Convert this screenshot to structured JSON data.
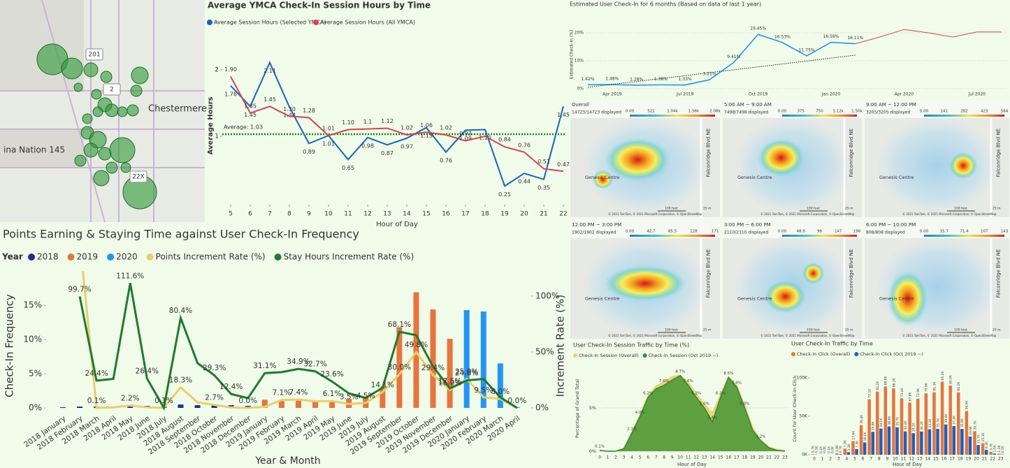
{
  "map": {
    "labels": [
      "201",
      "2",
      "Chestermere",
      "ina Nation 145",
      "22X"
    ]
  },
  "heatmaps": {
    "panels": [
      {
        "title": "Overall",
        "count": "14723/14723 displayed",
        "scale": [
          "0.00",
          "521",
          "1.04k",
          "1.56k",
          "2.08k"
        ]
      },
      {
        "title": "5:00 AM ~ 9:00 AM",
        "count": "7498/7498 displayed",
        "scale": [
          "0.00",
          "375",
          "750",
          "1.12k",
          "1.50k"
        ]
      },
      {
        "title": "9:00 AM ~ 12:00 PM",
        "count": "3205/3205 displayed",
        "scale": [
          "0.00",
          "141",
          "282",
          "423",
          "564"
        ]
      },
      {
        "title": "12:00 PM ~ 3:00 PM",
        "count": "1902/1902 displayed",
        "scale": [
          "0.00",
          "42.7",
          "85.5",
          "128",
          "171"
        ]
      },
      {
        "title": "3:00 PM ~ 6:00 PM",
        "count": "2110/2110 displayed",
        "scale": [
          "0.00",
          "48.9",
          "98",
          "147",
          "196"
        ]
      },
      {
        "title": "6:00 PM ~ 10:00 PM",
        "count": "808/808 displayed",
        "scale": [
          "0.00",
          "35.7",
          "71.4",
          "107",
          "143"
        ]
      }
    ],
    "place": "Genesis Centre",
    "street": "Falconridge Blvd NE",
    "scale_feet": "100 feet",
    "scale_m": "25 m",
    "attribution": "© 2021 TomTom, © 2021 Microsoft Corporation, © OpenStreetMap"
  },
  "chart_data": [
    {
      "type": "line",
      "title": "Average YMCA Check-In Session Hours by Time",
      "x": [
        5,
        6,
        7,
        8,
        9,
        10,
        11,
        12,
        13,
        14,
        15,
        16,
        17,
        18,
        19,
        20,
        21,
        22
      ],
      "xlim": [
        5,
        22
      ],
      "xticks": [
        5,
        6,
        7,
        8,
        9,
        10,
        11,
        12,
        13,
        14,
        15,
        16,
        17,
        18,
        19,
        20,
        21,
        22
      ],
      "ylim": [
        0,
        2.3
      ],
      "yticks": [
        1,
        2
      ],
      "x_label": "Hour of Day",
      "y_label": "Average Hours",
      "reference": {
        "value": 1.03,
        "label": "Average: 1.03",
        "color": "#138a13"
      },
      "series": [
        {
          "name": "Average Session Hours (Selected YMCA)",
          "color": "#1565c0",
          "values": [
            1.76,
            1.45,
            2.11,
            1.44,
            0.89,
            1.01,
            0.65,
            0.98,
            0.87,
            0.97,
            1.13,
            0.76,
            1.09,
            1.1,
            0.25,
            0.44,
            0.35,
            1.45
          ],
          "value_labels": [
            "1.76",
            "1.45",
            "2.11",
            "1.44",
            "0.89",
            "1.01",
            "0.65",
            "0.98",
            "0.87",
            "0.97",
            "1.13",
            "0.76",
            "1.09",
            "1.10",
            "0.25",
            "0.44",
            "0.35",
            "1.45"
          ]
        },
        {
          "name": "Average Session Hours (All YMCA)",
          "color": "#d9434f",
          "values": [
            1.9,
            1.35,
            1.45,
            1.3,
            1.28,
            1.01,
            1.1,
            1.11,
            1.12,
            1.02,
            1.06,
            1.02,
            0.93,
            1.0,
            0.84,
            0.76,
            0.51,
            0.47
          ],
          "value_labels": [
            "1.90",
            "1.35",
            "1.45",
            "1.30",
            "1.28",
            "1.01",
            "1.10",
            "1.1",
            "1.12",
            "1.02",
            "1.06",
            "1.02",
            "0.93",
            null,
            "0.84",
            "0.76",
            "0.51",
            "0.47"
          ]
        }
      ]
    },
    {
      "type": "line",
      "title": "Estimated User Check-In for 6 months (Based on data of last 1 year)",
      "categories": [
        null,
        "Apr 2019",
        null,
        null,
        "Jul 2019",
        null,
        null,
        "Oct 2019",
        null,
        null,
        "Jan 2020",
        null,
        null,
        "Apr 2020",
        null,
        null,
        "Jul 2020",
        null
      ],
      "ylim": [
        0,
        22
      ],
      "yticks": [
        {
          "value": 0,
          "label": "0%"
        },
        {
          "value": 10,
          "label": "10%"
        },
        {
          "value": 20,
          "label": "20%"
        }
      ],
      "y_label": "Estimated Check-in (%)",
      "series": [
        {
          "name": "Actual",
          "color": "#2196f3",
          "values": [
            1.42,
            1.48,
            1.28,
            1.38,
            1.33,
            3.21,
            9.41,
            19.45,
            16.53,
            11.75,
            16.59,
            16.11,
            null,
            null,
            null,
            null,
            null,
            null
          ],
          "value_labels": [
            "1.42%",
            "1.48%",
            "1.28%",
            "1.38%",
            "1.33%",
            "3.21%",
            "9.41%",
            "19.45%",
            "16.53%",
            "11.75%",
            "16.59%",
            "16.11%",
            null,
            null,
            null,
            null,
            null,
            null
          ]
        },
        {
          "name": "Forecast",
          "color": "#d9434f",
          "values": [
            null,
            null,
            null,
            null,
            null,
            null,
            null,
            null,
            null,
            null,
            null,
            16.11,
            18.5,
            21.2,
            20.0,
            18.5,
            20.3,
            20.3
          ]
        }
      ]
    },
    {
      "type": "combo",
      "title": "Points Earning & Staying Time against User Check-In Frequency",
      "legend_title": "Year",
      "categories": [
        "2018 January",
        "2018 February",
        "2018 March",
        "2018 April",
        "2018 May",
        "2018 June",
        "2018 July",
        "2018 August",
        "2018 September",
        "2018 October",
        "2018 November",
        "2018 December",
        "2019 January",
        "2019 February",
        "2019 March",
        "2019 April",
        "2019 May",
        "2019 June",
        "2019 July",
        "2019 August",
        "2019 September",
        "2019 October",
        "2019 November",
        "2019 December",
        "2020 January",
        "2020 February",
        "2020 March",
        "2020 April"
      ],
      "ylim": [
        0,
        19.3
      ],
      "yticks": [
        {
          "value": 0,
          "label": "0%"
        },
        {
          "value": 5,
          "label": "5%"
        },
        {
          "value": 10,
          "label": "10%"
        },
        {
          "value": 15,
          "label": "15%"
        }
      ],
      "y2lim": [
        0,
        118
      ],
      "y2ticks": [
        {
          "value": 0,
          "label": "0%"
        },
        {
          "value": 50,
          "label": "50%"
        },
        {
          "value": 100,
          "label": "100%"
        }
      ],
      "x_label": "Year & Month",
      "y_label": "Check-In Frequency",
      "y2_label": "Increment Rate (%)",
      "series": [
        {
          "name": "2018",
          "color": "#1a2f8f",
          "kind": "bar",
          "values": [
            0.1,
            0.2,
            0.2,
            0.2,
            0.4,
            0.3,
            0.2,
            0.5,
            0.4,
            0.4,
            0.4,
            0.3,
            null,
            null,
            null,
            null,
            null,
            null,
            null,
            null,
            null,
            null,
            null,
            null,
            null,
            null,
            null,
            null
          ]
        },
        {
          "name": "2019",
          "color": "#e8743b",
          "kind": "bar",
          "values": [
            null,
            null,
            null,
            null,
            null,
            null,
            null,
            null,
            null,
            null,
            null,
            null,
            1.2,
            1.0,
            1.1,
            1.1,
            1.0,
            1.3,
            1.6,
            3.0,
            11.8,
            16.9,
            14.4,
            10.1,
            null,
            null,
            null,
            null
          ]
        },
        {
          "name": "2020",
          "color": "#2196f3",
          "kind": "bar",
          "values": [
            null,
            null,
            null,
            null,
            null,
            null,
            null,
            null,
            null,
            null,
            null,
            null,
            null,
            null,
            null,
            null,
            null,
            null,
            null,
            null,
            null,
            null,
            null,
            null,
            14.3,
            14.1,
            6.5,
            0.1
          ]
        },
        {
          "name": "Points Increment Rate (%)",
          "color": "#e8cf6a",
          "kind": "line",
          "axis": "y2",
          "values": [
            null,
            150,
            0.1,
            0.5,
            2.2,
            0.5,
            0.1,
            18.3,
            5.0,
            2.7,
            0.5,
            0.0,
            1.0,
            7.1,
            7.4,
            6.0,
            6.1,
            3.5,
            4.5,
            14.1,
            30.0,
            49.8,
            29.4,
            16.0,
            25.9,
            9.5,
            8.0,
            0.0
          ],
          "value_labels": [
            null,
            null,
            "0.1%",
            null,
            "2.2%",
            null,
            "0.1%",
            "18.3%",
            null,
            "2.7%",
            null,
            "0.0%",
            null,
            "7.1%",
            "7.4%",
            null,
            "6.1%",
            "3.5%",
            "4.5%",
            "14.1%",
            "30.0%",
            "49.8%",
            "29.4%",
            "16.0%",
            "25.9%",
            "9.5%",
            "8.0%",
            "0.0%"
          ]
        },
        {
          "name": "Stay Hours Increment Rate (%)",
          "color": "#1e7b2e",
          "kind": "line",
          "axis": "y2",
          "values": [
            null,
            99.7,
            24.4,
            26.0,
            111.6,
            26.4,
            0.1,
            80.4,
            40.0,
            29.3,
            12.4,
            8.8,
            31.1,
            32.0,
            34.9,
            32.7,
            23.6,
            13.0,
            9.0,
            18.0,
            68.1,
            65.0,
            37.0,
            17.5,
            24.6,
            25.9,
            9.5,
            0.0
          ],
          "value_labels": [
            null,
            "99.7%",
            "24.4%",
            null,
            "111.6%",
            "26.4%",
            null,
            "80.4%",
            null,
            "29.3%",
            "12.4%",
            null,
            "31.1%",
            null,
            "34.9%",
            "32.7%",
            "23.6%",
            null,
            null,
            null,
            "68.1%",
            null,
            null,
            "17.5%",
            "24.6%",
            null,
            null,
            null
          ]
        }
      ]
    },
    {
      "type": "area",
      "title": "User Check-In Session Traffic by Time (%)",
      "x": [
        0,
        1,
        2,
        3,
        4,
        5,
        6,
        7,
        8,
        9,
        10,
        11,
        12,
        13,
        14,
        15,
        16,
        17,
        18,
        19,
        20,
        21,
        22,
        23
      ],
      "xlim": [
        0,
        23
      ],
      "xticks": [
        0,
        1,
        2,
        3,
        4,
        5,
        6,
        7,
        8,
        9,
        10,
        11,
        12,
        13,
        14,
        15,
        16,
        17,
        18,
        19,
        20,
        21,
        22,
        23
      ],
      "ylim": [
        0,
        9.5
      ],
      "yticks": [
        {
          "value": 0,
          "label": "0%"
        },
        {
          "value": 5,
          "label": "5%"
        }
      ],
      "x_label": "Hour of Day",
      "y_label": "Percentage of Grand Total",
      "series": [
        {
          "name": "Check-In Session (Overall)",
          "color": "#e8cf6a",
          "values": [
            0.1,
            0.0,
            0.0,
            0.3,
            2.2,
            4.2,
            6.4,
            7.5,
            8.0,
            8.6,
            8.8,
            7.9,
            6.6,
            5.4,
            4.4,
            6.5,
            8.6,
            7.6,
            5.3,
            2.7,
            1.3,
            0.5,
            0.2,
            0.1
          ]
        },
        {
          "name": "Check-In Session (Oct 2019 ~)",
          "color": "#2f8f2f",
          "values": [
            0.1,
            0.0,
            0.0,
            0.3,
            2.1,
            4.0,
            6.2,
            7.2,
            7.6,
            8.2,
            8.7,
            7.6,
            6.2,
            5.0,
            3.4,
            6.2,
            8.5,
            7.4,
            5.0,
            2.4,
            1.2,
            0.4,
            0.1,
            0.0
          ],
          "value_labels": [
            "0.1%",
            null,
            null,
            null,
            "2.1%",
            "4.0%",
            "6.2%",
            null,
            "7.6%",
            null,
            "8.7%",
            "7.6%",
            "6.2%",
            "5.0%",
            "3.4%",
            "6.2%",
            "8.5%",
            "7.4%",
            "5.0%",
            null,
            "1.2%",
            null,
            null,
            null
          ]
        }
      ]
    },
    {
      "type": "bar",
      "title": "User Check-In Traffic by Time",
      "x": [
        0,
        1,
        2,
        3,
        4,
        5,
        6,
        7,
        8,
        9,
        10,
        11,
        12,
        13,
        14,
        15,
        16,
        17,
        18,
        19,
        20,
        21,
        22,
        23
      ],
      "ylim": [
        0,
        110000
      ],
      "yticks": [
        {
          "value": 0,
          "label": "0K"
        },
        {
          "value": 50000,
          "label": "50K"
        },
        {
          "value": 100000,
          "label": "100K"
        }
      ],
      "x_label": "Hour of Day",
      "y_label": "Count for User Check-In Click",
      "series": [
        {
          "name": "Check-In Click (Overall)",
          "color": "#e8743b",
          "values": [
            700,
            100,
            100,
            1800,
            7900,
            17600,
            38400,
            72100,
            82200,
            88800,
            86200,
            73400,
            67800,
            72900,
            79900,
            81300,
            95100,
            90000,
            81200,
            56900,
            30700,
            15100,
            3700,
            1300
          ],
          "value_labels": [
            "0.7K",
            "0.1K",
            "0.1K",
            "1.8K",
            "7.9K",
            "17.6K",
            "38.4K",
            "72.1K",
            "82.2K",
            "88.8K",
            "86.2K",
            "73.4K",
            "67.8K",
            "72.9K",
            "79.9K",
            "81.3K",
            "95.1K",
            "90.0K",
            "81.2K",
            "56.9K",
            "30.7K",
            "15.1K",
            "3.7K",
            "1.3K"
          ]
        },
        {
          "name": "Check-In Click (Oct 2019 ~)",
          "color": "#1f5fbf",
          "values": [
            300,
            0,
            0,
            700,
            3300,
            7300,
            16000,
            29800,
            34100,
            36800,
            35700,
            30400,
            28100,
            30200,
            33100,
            33700,
            39400,
            37300,
            33600,
            23600,
            12700,
            6300,
            1500,
            500
          ],
          "value_labels": [
            "0.3K",
            "0.0K",
            "0.0K",
            "0.7K",
            "3.3K",
            "7.3K",
            "16.0K",
            "29.8K",
            "34.1K",
            "36.8K",
            "35.7K",
            "30.4K",
            "28.1K",
            "30.2K",
            "33.1K",
            "33.7K",
            "39.4K",
            "37.3K",
            "33.6K",
            "23.6K",
            "12.7K",
            "6.3K",
            "1.5K",
            "0.5K"
          ]
        }
      ]
    }
  ]
}
